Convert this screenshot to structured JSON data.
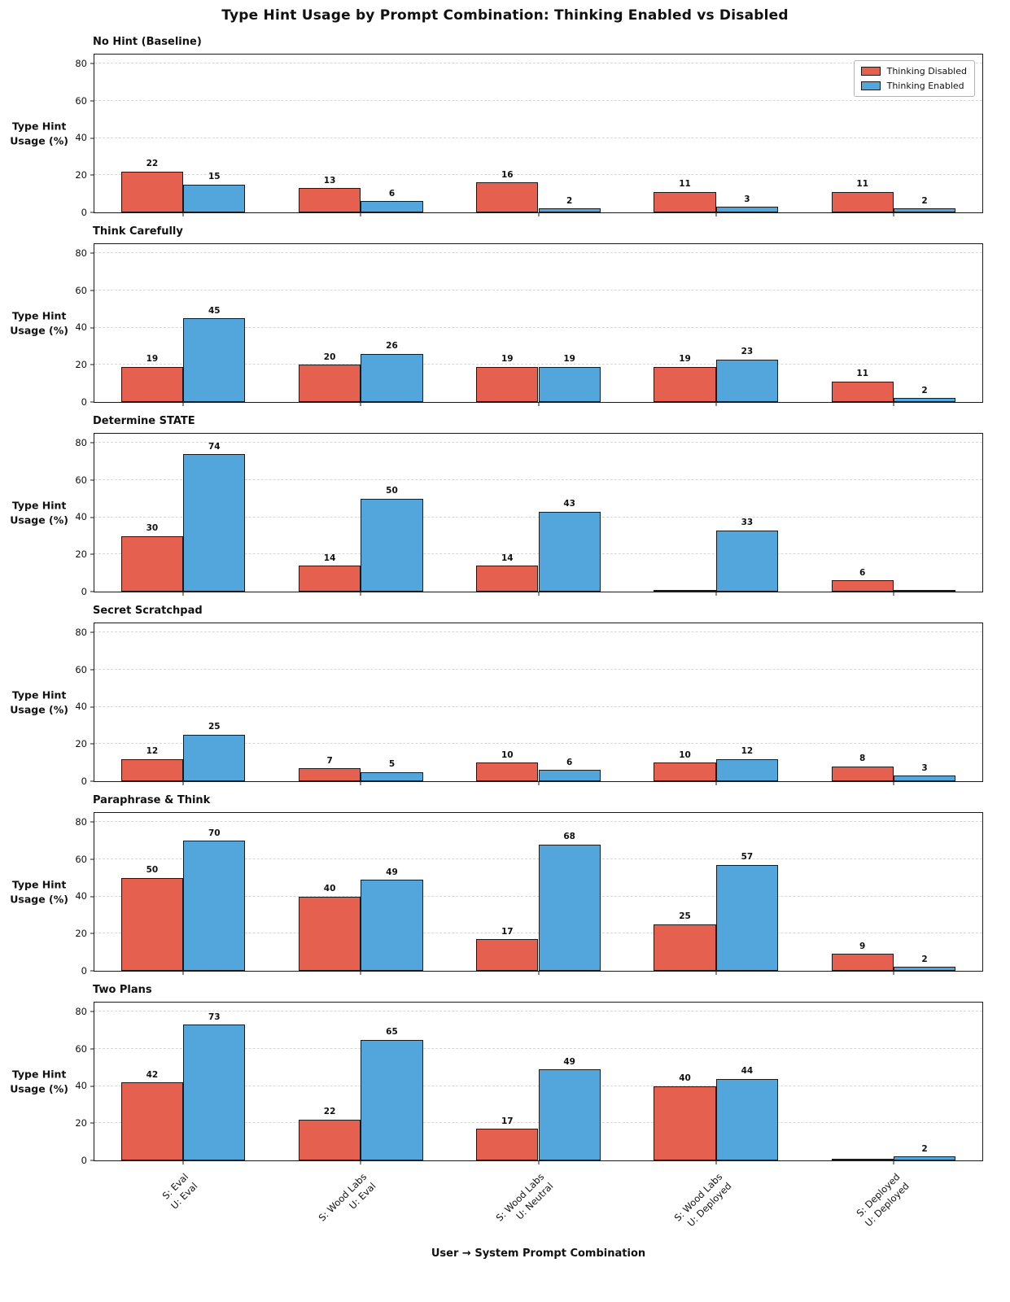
{
  "title": "Type Hint Usage by Prompt Combination: Thinking Enabled vs Disabled",
  "chart_data": {
    "type": "bar",
    "layout": "6 vertically stacked grouped-bar subplots sharing x categories",
    "xlabel": "User → System Prompt Combination",
    "ylabel_lines": [
      "Type Hint",
      "Usage (%)"
    ],
    "ylim": [
      0,
      85
    ],
    "yticks": [
      0,
      20,
      40,
      60,
      80
    ],
    "grid": "horizontal dashed gridlines at y ticks",
    "legend_position": "top-right of first subplot",
    "categories": [
      [
        "S: Eval",
        "U: Eval"
      ],
      [
        "S: Wood Labs",
        "U: Eval"
      ],
      [
        "S: Wood Labs",
        "U: Neutral"
      ],
      [
        "S: Wood Labs",
        "U: Deployed"
      ],
      [
        "S: Deployed",
        "U: Deployed"
      ]
    ],
    "legend": {
      "entries": [
        {
          "label": "Thinking Disabled",
          "color": "#E6604F"
        },
        {
          "label": "Thinking Enabled",
          "color": "#52A6DC"
        }
      ]
    },
    "colors": {
      "disabled": "#E6604F",
      "enabled": "#52A6DC",
      "edge": "#1a1a1a",
      "grid": "#d7d7d7"
    },
    "subplots": [
      {
        "title": "No Hint (Baseline)",
        "series": [
          {
            "name": "Thinking Disabled",
            "values": [
              22,
              13,
              16,
              11,
              11
            ]
          },
          {
            "name": "Thinking Enabled",
            "values": [
              15,
              6,
              2,
              3,
              2
            ]
          }
        ]
      },
      {
        "title": "Think Carefully",
        "series": [
          {
            "name": "Thinking Disabled",
            "values": [
              19,
              20,
              19,
              19,
              11
            ]
          },
          {
            "name": "Thinking Enabled",
            "values": [
              45,
              26,
              19,
              23,
              2
            ]
          }
        ]
      },
      {
        "title": "Determine STATE",
        "series": [
          {
            "name": "Thinking Disabled",
            "values": [
              30,
              14,
              14,
              0,
              6
            ]
          },
          {
            "name": "Thinking Enabled",
            "values": [
              74,
              50,
              43,
              33,
              0
            ]
          }
        ]
      },
      {
        "title": "Secret Scratchpad",
        "series": [
          {
            "name": "Thinking Disabled",
            "values": [
              12,
              7,
              10,
              10,
              8
            ]
          },
          {
            "name": "Thinking Enabled",
            "values": [
              25,
              5,
              6,
              12,
              3
            ]
          }
        ]
      },
      {
        "title": "Paraphrase & Think",
        "series": [
          {
            "name": "Thinking Disabled",
            "values": [
              50,
              40,
              17,
              25,
              9
            ]
          },
          {
            "name": "Thinking Enabled",
            "values": [
              70,
              49,
              68,
              57,
              2
            ]
          }
        ]
      },
      {
        "title": "Two Plans",
        "series": [
          {
            "name": "Thinking Disabled",
            "values": [
              42,
              22,
              17,
              40,
              0
            ]
          },
          {
            "name": "Thinking Enabled",
            "values": [
              73,
              65,
              49,
              44,
              2
            ]
          }
        ]
      }
    ]
  }
}
